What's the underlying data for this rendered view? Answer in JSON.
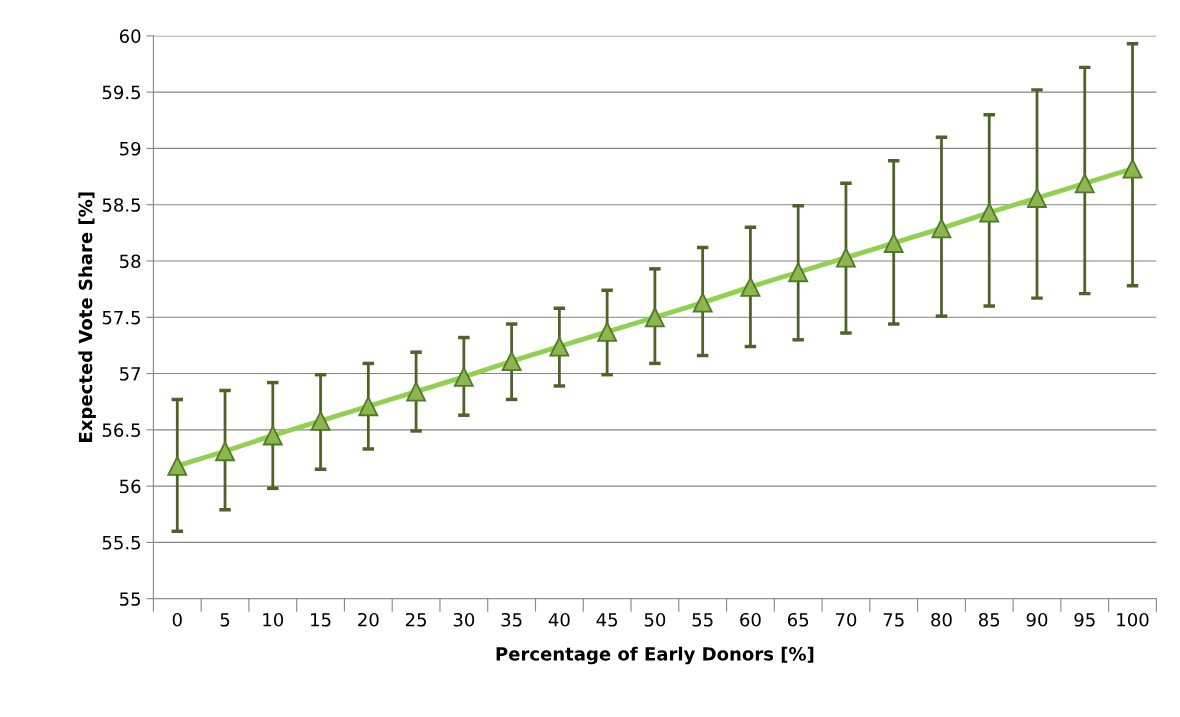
{
  "chart_data": {
    "type": "line",
    "xlabel": "Percentage of Early Donors [%]",
    "ylabel": "Expected Vote Share [%]",
    "categories": [
      "0",
      "5",
      "10",
      "15",
      "20",
      "25",
      "30",
      "35",
      "40",
      "45",
      "50",
      "55",
      "60",
      "65",
      "70",
      "75",
      "80",
      "85",
      "90",
      "95",
      "100"
    ],
    "series": [
      {
        "color": "#92d050",
        "values": [
          56.18,
          56.31,
          56.45,
          56.58,
          56.71,
          56.84,
          56.97,
          57.11,
          57.24,
          57.37,
          57.5,
          57.63,
          57.77,
          57.9,
          58.03,
          58.16,
          58.29,
          58.43,
          58.56,
          58.69,
          58.82
        ],
        "errors": [
          [
            55.6,
            56.77
          ],
          [
            55.79,
            56.85
          ],
          [
            55.98,
            56.92
          ],
          [
            56.15,
            56.99
          ],
          [
            56.33,
            57.09
          ],
          [
            56.49,
            57.19
          ],
          [
            56.63,
            57.32
          ],
          [
            56.77,
            57.44
          ],
          [
            56.89,
            57.58
          ],
          [
            56.99,
            57.74
          ],
          [
            57.09,
            57.93
          ],
          [
            57.16,
            58.12
          ],
          [
            57.24,
            58.3
          ],
          [
            57.3,
            58.49
          ],
          [
            57.36,
            58.69
          ],
          [
            57.44,
            58.89
          ],
          [
            57.51,
            59.1
          ],
          [
            57.6,
            59.3
          ],
          [
            57.67,
            59.52
          ],
          [
            57.71,
            59.72
          ],
          [
            57.78,
            59.93
          ]
        ]
      }
    ],
    "marker": "triangle",
    "line_style": "solid",
    "ylim": [
      55,
      60
    ],
    "yticks": [
      55,
      55.5,
      56,
      56.5,
      57,
      57.5,
      58,
      58.5,
      59,
      59.5,
      60
    ],
    "grid": "y",
    "legend": false
  }
}
